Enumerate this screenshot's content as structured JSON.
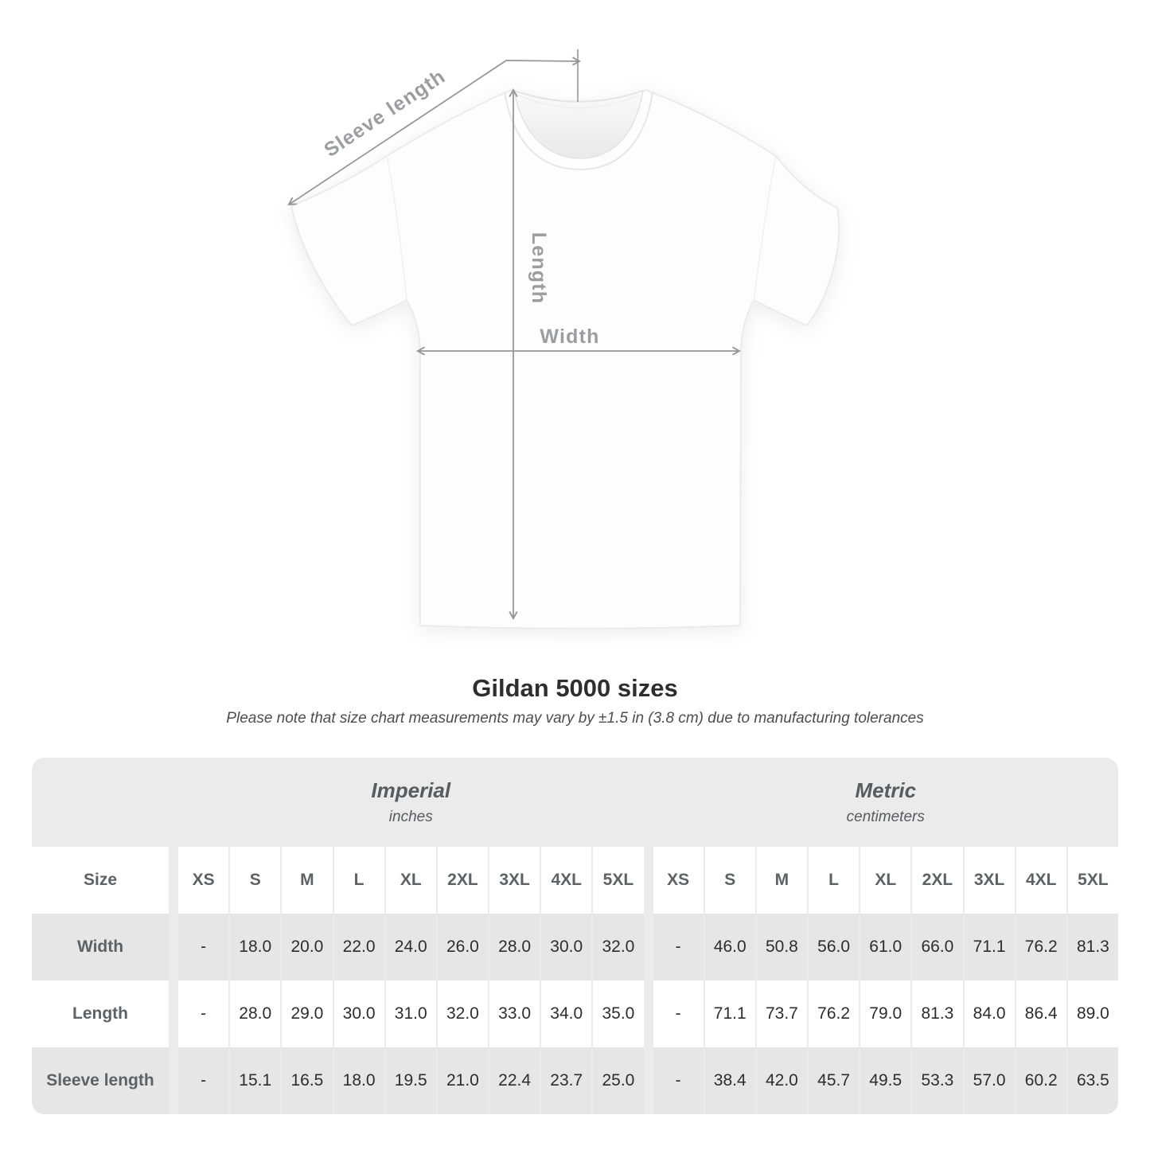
{
  "diagram": {
    "labels": {
      "sleeve": "Sleeve length",
      "length": "Length",
      "width": "Width"
    }
  },
  "title": "Gildan 5000 sizes",
  "subtitle": "Please note that size chart measurements may vary by ±1.5 in (3.8 cm) due to manufacturing tolerances",
  "table": {
    "size_header": "Size",
    "groups": [
      {
        "name": "Imperial",
        "unit": "inches"
      },
      {
        "name": "Metric",
        "unit": "centimeters"
      }
    ],
    "sizes": [
      "XS",
      "S",
      "M",
      "L",
      "XL",
      "2XL",
      "3XL",
      "4XL",
      "5XL"
    ]
  },
  "chart_data": {
    "type": "table",
    "title": "Gildan 5000 sizes",
    "note": "Please note that size chart measurements may vary by ±1.5 in (3.8 cm) due to manufacturing tolerances",
    "column_groups": [
      {
        "name": "Imperial",
        "unit": "inches"
      },
      {
        "name": "Metric",
        "unit": "centimeters"
      }
    ],
    "sizes": [
      "XS",
      "S",
      "M",
      "L",
      "XL",
      "2XL",
      "3XL",
      "4XL",
      "5XL"
    ],
    "rows": [
      {
        "label": "Width",
        "imperial": [
          "-",
          "18.0",
          "20.0",
          "22.0",
          "24.0",
          "26.0",
          "28.0",
          "30.0",
          "32.0"
        ],
        "metric": [
          "-",
          "46.0",
          "50.8",
          "56.0",
          "61.0",
          "66.0",
          "71.1",
          "76.2",
          "81.3"
        ]
      },
      {
        "label": "Length",
        "imperial": [
          "-",
          "28.0",
          "29.0",
          "30.0",
          "31.0",
          "32.0",
          "33.0",
          "34.0",
          "35.0"
        ],
        "metric": [
          "-",
          "71.1",
          "73.7",
          "76.2",
          "79.0",
          "81.3",
          "84.0",
          "86.4",
          "89.0"
        ]
      },
      {
        "label": "Sleeve length",
        "imperial": [
          "-",
          "15.1",
          "16.5",
          "18.0",
          "19.5",
          "21.0",
          "22.4",
          "23.7",
          "25.0"
        ],
        "metric": [
          "-",
          "38.4",
          "42.0",
          "45.7",
          "49.5",
          "53.3",
          "57.0",
          "60.2",
          "63.5"
        ]
      }
    ]
  },
  "colors": {
    "card_bg": "#ebebeb",
    "alt_row_bg": "#e6e6e6",
    "header_text": "#5c6265",
    "value_text": "#2d2d2d",
    "arrow": "#949899",
    "diagram_label": "#9a9ea1"
  }
}
